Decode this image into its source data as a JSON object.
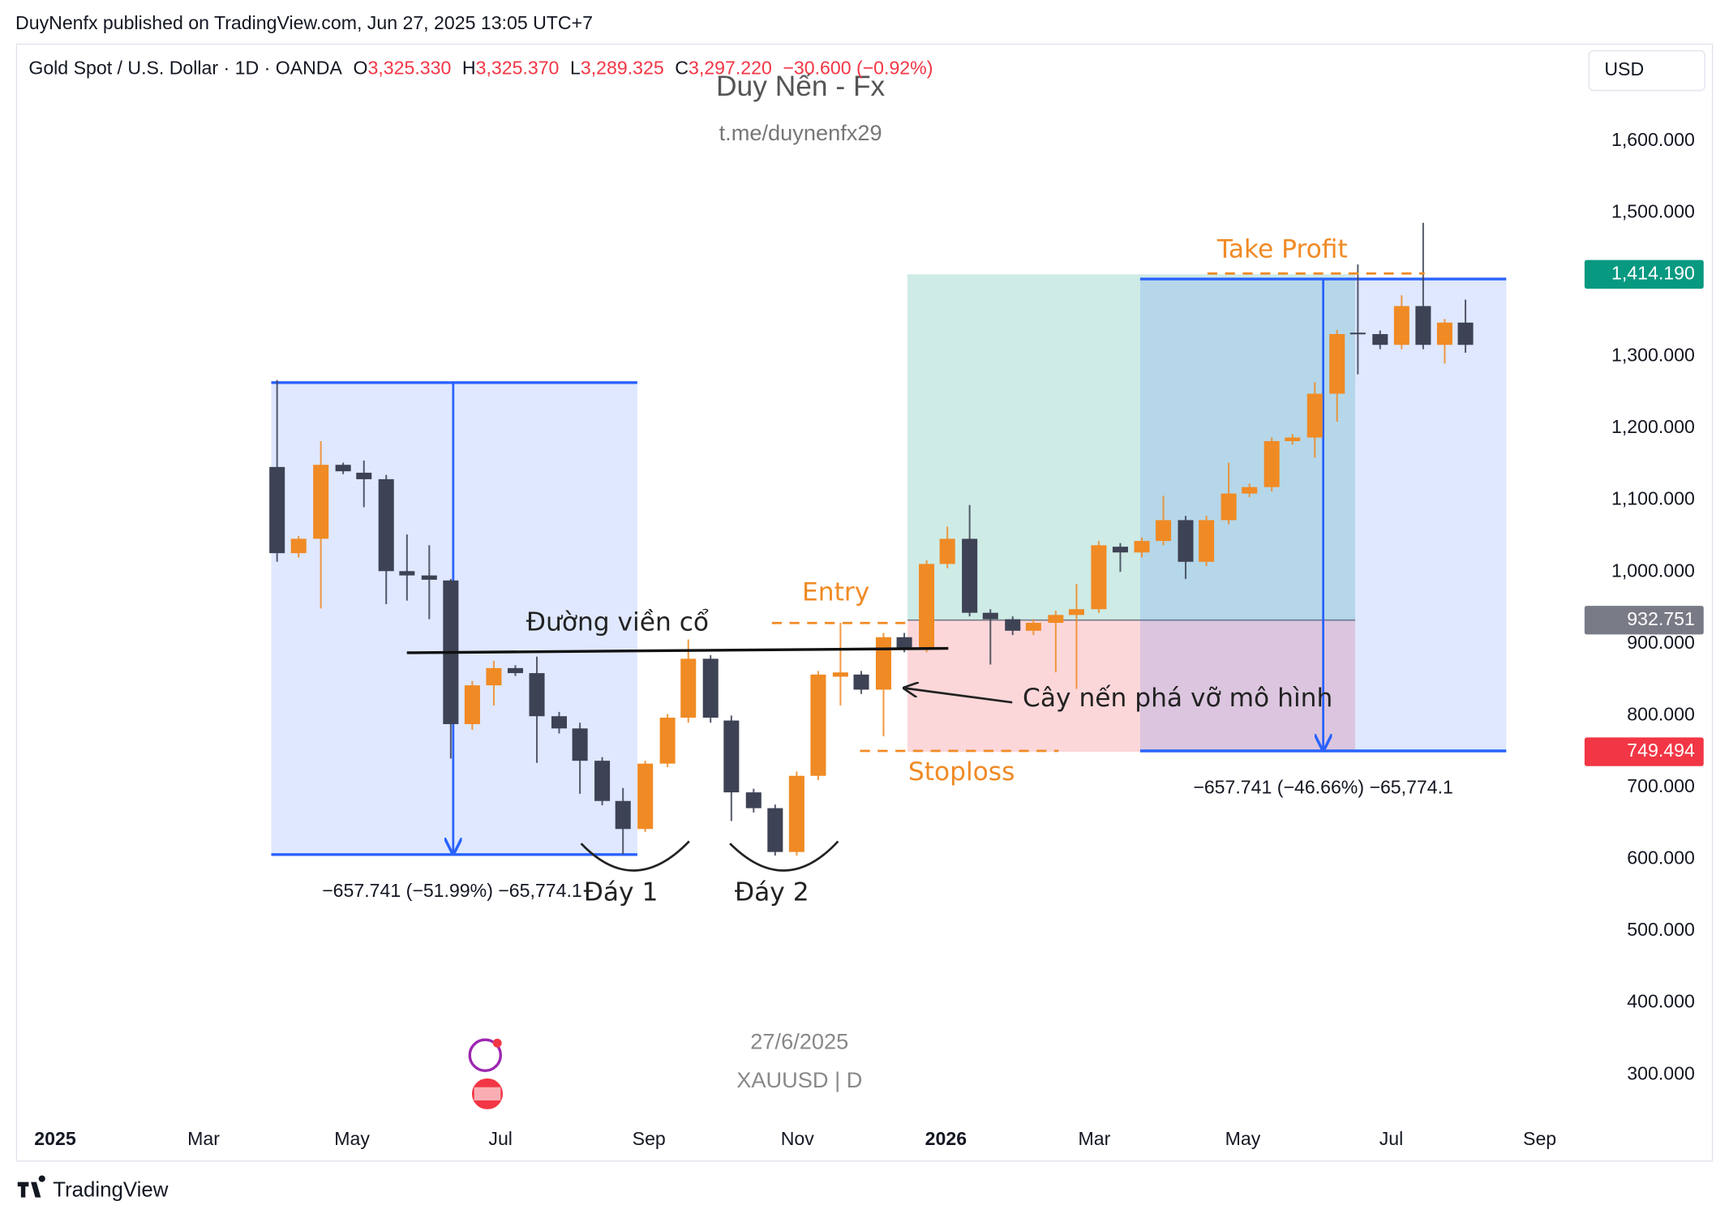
{
  "header": {
    "published": "DuyNenfx published on TradingView.com, Jun 27, 2025 13:05 UTC+7",
    "symbol": "Gold Spot / U.S. Dollar · 1D · OANDA",
    "ohlc": [
      {
        "key": "O",
        "value": "3,325.330"
      },
      {
        "key": "H",
        "value": "3,325.370"
      },
      {
        "key": "L",
        "value": "3,289.325"
      },
      {
        "key": "C",
        "value": "3,297.220"
      }
    ],
    "change": "−30.600 (−0.92%)",
    "currency": "USD"
  },
  "watermark": {
    "title": "Duy Nến - Fx",
    "link": "t.me/duynenfx29",
    "date": "27/6/2025",
    "symbol": "XAUUSD | D"
  },
  "footer": {
    "brand": "TradingView"
  },
  "chart_data": {
    "type": "candlestick",
    "up_color": "#f08a24",
    "down_color": "#3d4254",
    "xlim": [
      -0.52,
      20.5
    ],
    "ylim": [
      238,
      1727
    ],
    "xticks": [
      {
        "value": 0,
        "label": "2025"
      },
      {
        "value": 2,
        "label": "Mar"
      },
      {
        "value": 4,
        "label": "May"
      },
      {
        "value": 6,
        "label": "Jul"
      },
      {
        "value": 8,
        "label": "Sep"
      },
      {
        "value": 10,
        "label": "Nov"
      },
      {
        "value": 12,
        "label": "2026"
      },
      {
        "value": 14,
        "label": "Mar"
      },
      {
        "value": 16,
        "label": "May"
      },
      {
        "value": 18,
        "label": "Jul"
      },
      {
        "value": 20,
        "label": "Sep"
      }
    ],
    "yticks": [
      {
        "value": 1600,
        "label": "1,600.000"
      },
      {
        "value": 1500,
        "label": "1,500.000"
      },
      {
        "value": 1300,
        "label": "1,300.000"
      },
      {
        "value": 1200,
        "label": "1,200.000"
      },
      {
        "value": 1100,
        "label": "1,100.000"
      },
      {
        "value": 1000,
        "label": "1,000.000"
      },
      {
        "value": 900,
        "label": "900.000"
      },
      {
        "value": 800,
        "label": "800.000"
      },
      {
        "value": 700,
        "label": "700.000"
      },
      {
        "value": 600,
        "label": "600.000"
      },
      {
        "value": 500,
        "label": "500.000"
      },
      {
        "value": 400,
        "label": "400.000"
      },
      {
        "value": 300,
        "label": "300.000"
      }
    ],
    "price_labels": [
      {
        "value": 1414.19,
        "label": "1,414.190",
        "color": "#089981"
      },
      {
        "value": 932.751,
        "label": "932.751",
        "color": "#787b86"
      },
      {
        "value": 749.494,
        "label": "749.494",
        "color": "#f23645"
      }
    ],
    "x": [
      2.99,
      3.28,
      3.58,
      3.88,
      4.16,
      4.46,
      4.74,
      5.04,
      5.33,
      5.62,
      5.91,
      6.2,
      6.49,
      6.79,
      7.07,
      7.37,
      7.65,
      7.95,
      8.25,
      8.53,
      8.83,
      9.11,
      9.41,
      9.7,
      9.99,
      10.28,
      10.58,
      10.86,
      11.16,
      11.44,
      11.74,
      12.02,
      12.32,
      12.6,
      12.9,
      13.18,
      13.48,
      13.76,
      14.06,
      14.35,
      14.64,
      14.93,
      15.23,
      15.51,
      15.81,
      16.09,
      16.39,
      16.67,
      16.97,
      17.27,
      17.55,
      17.85,
      18.14,
      18.43,
      18.72,
      19.0
    ],
    "open": [
      1146,
      1026,
      1046,
      1149,
      1138,
      1129,
      1001,
      995,
      988,
      788,
      842,
      866,
      859,
      799,
      782,
      737,
      681,
      642,
      733,
      797,
      879,
      793,
      693,
      671,
      610,
      716,
      854,
      857,
      836,
      909,
      894,
      1011,
      1046,
      943,
      934,
      918,
      929,
      940,
      948,
      1035,
      1027,
      1043,
      1072,
      1014,
      1072,
      1109,
      1118,
      1182,
      1187,
      1248,
      1333,
      1331,
      1316,
      1370,
      1316,
      1347
    ],
    "high": [
      1267,
      1050,
      1182,
      1152,
      1155,
      1135,
      1052,
      1037,
      990,
      848,
      876,
      870,
      882,
      805,
      790,
      742,
      699,
      737,
      802,
      906,
      884,
      800,
      698,
      676,
      722,
      862,
      929,
      862,
      915,
      915,
      1016,
      1063,
      1093,
      948,
      938,
      934,
      946,
      983,
      1043,
      1040,
      1048,
      1106,
      1078,
      1078,
      1152,
      1123,
      1187,
      1192,
      1264,
      1337,
      1428,
      1336,
      1385,
      1486,
      1352,
      1379
    ],
    "low": [
      1014,
      1020,
      949,
      1136,
      1090,
      955,
      960,
      934,
      740,
      780,
      814,
      855,
      734,
      775,
      691,
      675,
      607,
      638,
      728,
      790,
      790,
      653,
      665,
      605,
      605,
      710,
      814,
      830,
      771,
      888,
      888,
      1005,
      938,
      871,
      912,
      912,
      860,
      837,
      943,
      1000,
      1020,
      1037,
      990,
      1008,
      1066,
      1104,
      1112,
      1177,
      1159,
      1209,
      1275,
      1310,
      1310,
      1310,
      1290,
      1305
    ],
    "close": [
      1026,
      1046,
      1149,
      1140,
      1129,
      1001,
      995,
      989,
      788,
      842,
      866,
      859,
      799,
      782,
      737,
      681,
      642,
      733,
      797,
      879,
      797,
      693,
      671,
      610,
      716,
      857,
      860,
      836,
      909,
      894,
      1011,
      1046,
      943,
      934,
      918,
      929,
      940,
      948,
      1037,
      1027,
      1043,
      1072,
      1014,
      1072,
      1109,
      1118,
      1182,
      1187,
      1248,
      1331,
      1331,
      1316,
      1370,
      1316,
      1347,
      1316
    ],
    "annotations": {
      "take_profit": "Take Profit",
      "entry": "Entry",
      "stoploss": "Stoploss",
      "neckline": "Đường viền cổ",
      "breakout": "Cây nến phá vỡ mô hình",
      "bottom1": "Đáy 1",
      "bottom2": "Đáy 2",
      "measure_left": "−657.741 (−51.99%) −65,774.1",
      "measure_right": "−657.741 (−46.66%) −65,774.1"
    }
  }
}
